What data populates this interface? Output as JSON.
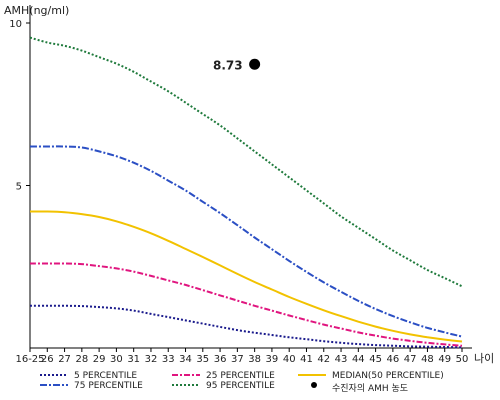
{
  "chart_data": {
    "type": "line",
    "ylabel": "AMH(ng/ml)",
    "xlabel": "나이",
    "ylim": [
      0,
      10
    ],
    "yticks": [
      5,
      10
    ],
    "categories": [
      "16-25",
      "26",
      "27",
      "28",
      "29",
      "30",
      "31",
      "32",
      "33",
      "34",
      "35",
      "36",
      "37",
      "38",
      "39",
      "40",
      "41",
      "42",
      "43",
      "44",
      "45",
      "46",
      "47",
      "48",
      "49",
      "50"
    ],
    "series": [
      {
        "name": "5 PERCENTILE",
        "color": "#1a1a8c",
        "dash": "2,2",
        "values": [
          1.3,
          1.3,
          1.3,
          1.29,
          1.26,
          1.22,
          1.15,
          1.05,
          0.95,
          0.85,
          0.75,
          0.65,
          0.55,
          0.47,
          0.4,
          0.33,
          0.27,
          0.21,
          0.16,
          0.12,
          0.09,
          0.07,
          0.05,
          0.04,
          0.03,
          0.02
        ]
      },
      {
        "name": "25 PERCENTILE",
        "color": "#e0157f",
        "dash": "6,2,2,2",
        "values": [
          2.6,
          2.6,
          2.6,
          2.58,
          2.52,
          2.45,
          2.35,
          2.22,
          2.08,
          1.94,
          1.78,
          1.62,
          1.46,
          1.3,
          1.15,
          1.0,
          0.86,
          0.72,
          0.6,
          0.48,
          0.38,
          0.29,
          0.22,
          0.16,
          0.11,
          0.07
        ]
      },
      {
        "name": "MEDIAN(50 PERCENTILE)",
        "color": "#f2c200",
        "dash": "",
        "values": [
          4.2,
          4.2,
          4.18,
          4.12,
          4.03,
          3.9,
          3.73,
          3.53,
          3.3,
          3.05,
          2.8,
          2.54,
          2.28,
          2.03,
          1.8,
          1.57,
          1.36,
          1.16,
          0.98,
          0.81,
          0.66,
          0.53,
          0.42,
          0.33,
          0.26,
          0.2
        ]
      },
      {
        "name": "75 PERCENTILE",
        "color": "#2b4fc4",
        "dash": "7,2,2,2",
        "values": [
          6.2,
          6.2,
          6.2,
          6.17,
          6.05,
          5.9,
          5.7,
          5.45,
          5.15,
          4.85,
          4.5,
          4.15,
          3.78,
          3.4,
          3.04,
          2.68,
          2.34,
          2.02,
          1.73,
          1.45,
          1.2,
          0.98,
          0.79,
          0.62,
          0.48,
          0.35
        ]
      },
      {
        "name": "95 PERCENTILE",
        "color": "#1f7a3c",
        "dash": "2,2",
        "values": [
          9.55,
          9.4,
          9.3,
          9.15,
          8.95,
          8.75,
          8.5,
          8.2,
          7.9,
          7.55,
          7.2,
          6.85,
          6.45,
          6.05,
          5.65,
          5.25,
          4.85,
          4.45,
          4.05,
          3.7,
          3.35,
          3.0,
          2.7,
          2.4,
          2.15,
          1.9
        ]
      }
    ],
    "point": {
      "name": "수진자의 AMH 농도",
      "category": "38",
      "value": 8.73,
      "label": "8.73",
      "color": "#000000"
    },
    "legend_position": "bottom"
  }
}
